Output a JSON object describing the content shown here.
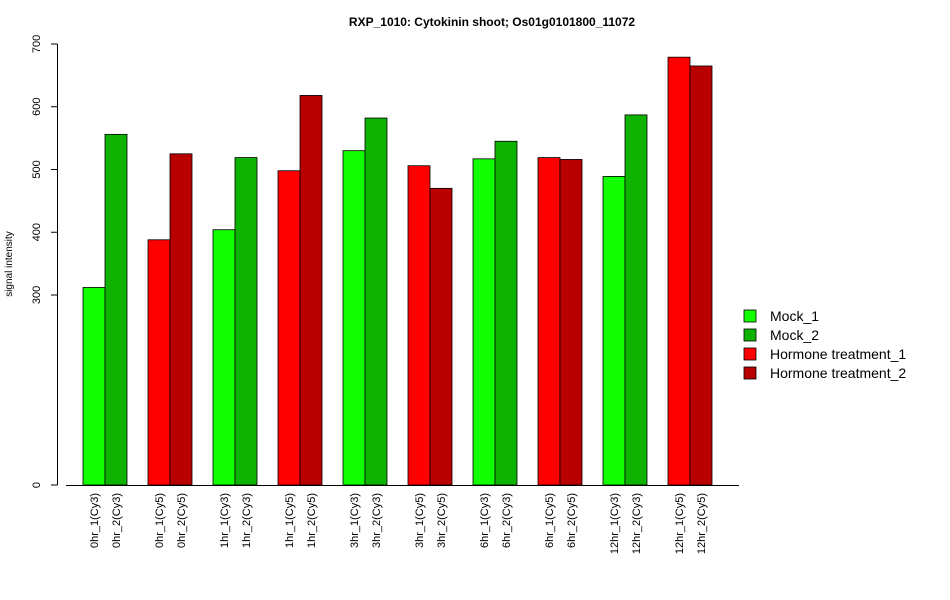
{
  "chart_data": {
    "type": "bar",
    "title": "RXP_1010: Cytokinin shoot; Os01g0101800_11072",
    "xlabel": "",
    "ylabel": "signal intensity",
    "y_scale": "compressed-low (0 to ~250 squeezed)",
    "yticks": [
      0,
      300,
      400,
      500,
      600,
      700
    ],
    "ylim": [
      0,
      700
    ],
    "categories": [
      "0hr_1(Cy3)",
      "0hr_2(Cy3)",
      "0hr_1(Cy5)",
      "0hr_2(Cy5)",
      "1hr_1(Cy3)",
      "1hr_2(Cy3)",
      "1hr_1(Cy5)",
      "1hr_2(Cy5)",
      "3hr_1(Cy3)",
      "3hr_2(Cy3)",
      "3hr_1(Cy5)",
      "3hr_2(Cy5)",
      "6hr_1(Cy3)",
      "6hr_2(Cy3)",
      "6hr_1(Cy5)",
      "6hr_2(Cy5)",
      "12hr_1(Cy3)",
      "12hr_2(Cy3)",
      "12hr_1(Cy5)",
      "12hr_2(Cy5)"
    ],
    "values": [
      312,
      556,
      388,
      525,
      404,
      519,
      498,
      618,
      530,
      582,
      506,
      470,
      517,
      545,
      519,
      516,
      489,
      587,
      679,
      665
    ],
    "bar_series": [
      0,
      1,
      2,
      3,
      0,
      1,
      2,
      3,
      0,
      1,
      2,
      3,
      0,
      1,
      2,
      3,
      0,
      1,
      2,
      3
    ],
    "series": [
      {
        "name": "Mock_1",
        "color": "#11ff00"
      },
      {
        "name": "Mock_2",
        "color": "#0db300"
      },
      {
        "name": "Hormone treatment_1",
        "color": "#ff0000"
      },
      {
        "name": "Hormone treatment_2",
        "color": "#b80000"
      }
    ],
    "legend_position": "right",
    "grid": false
  }
}
